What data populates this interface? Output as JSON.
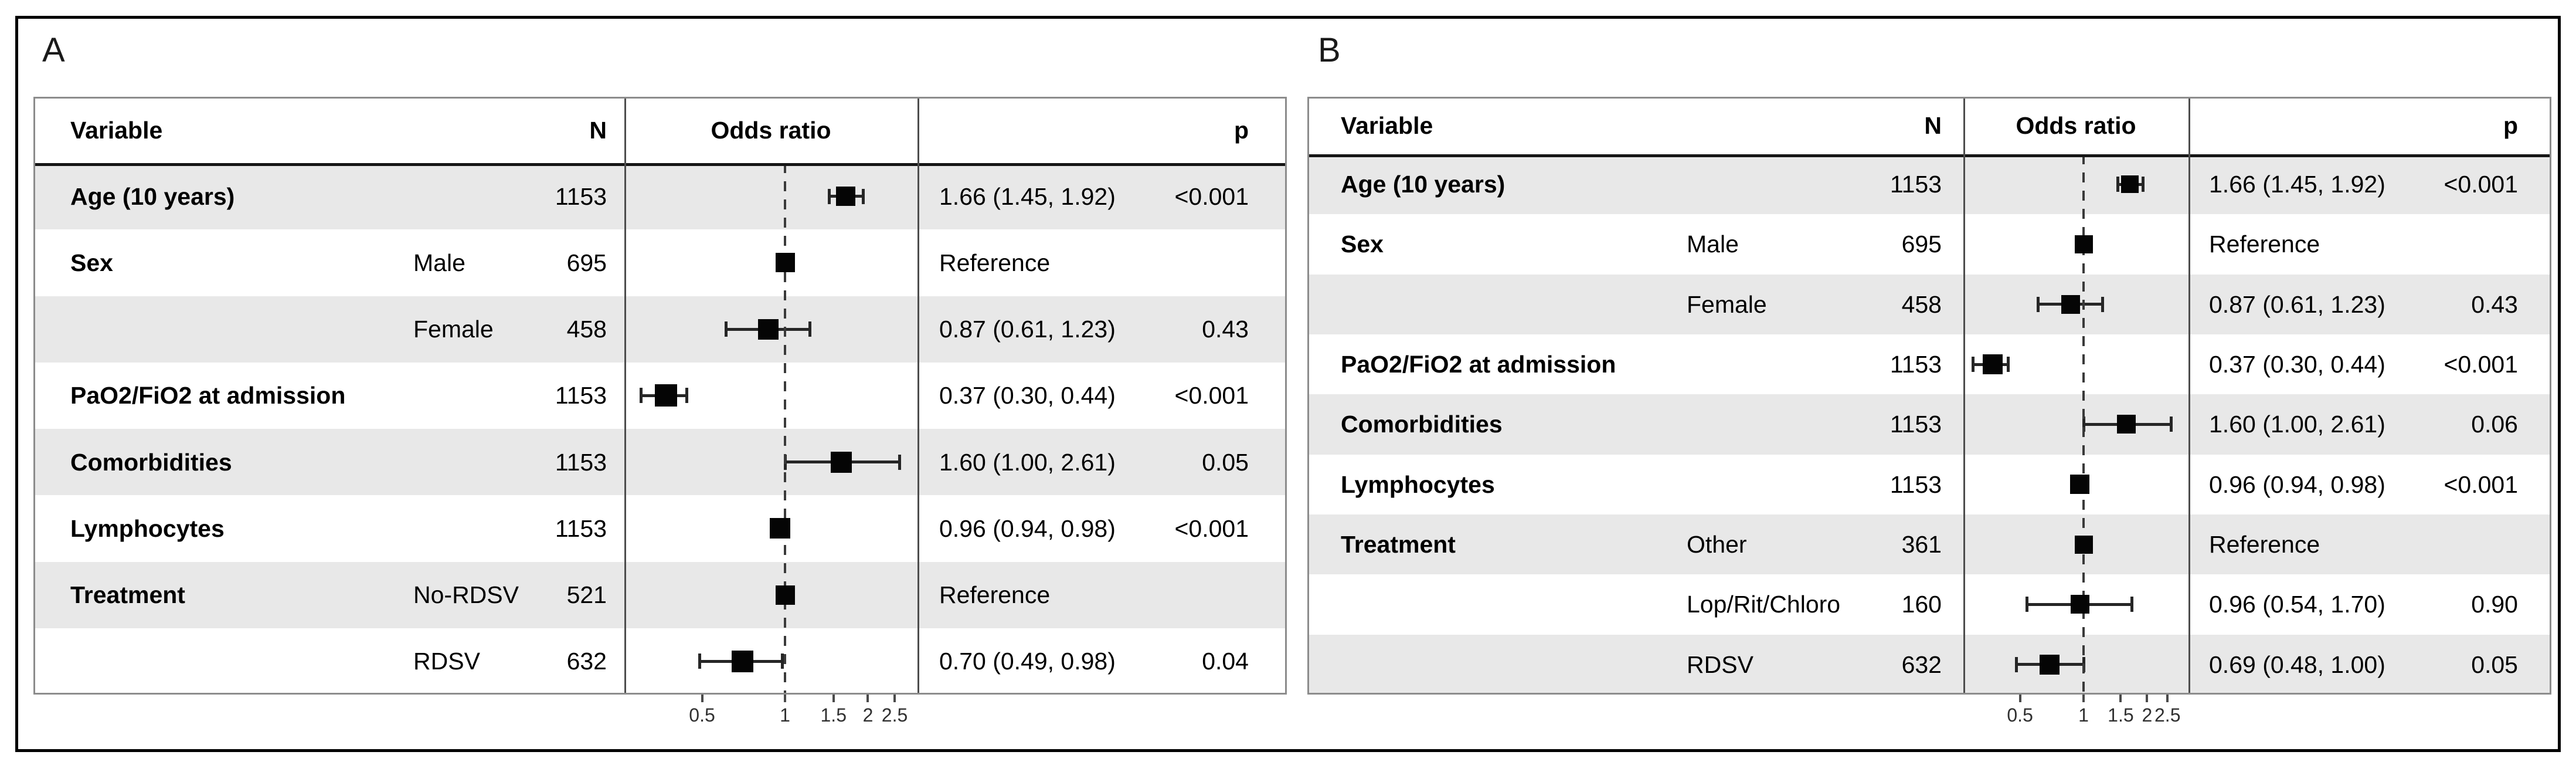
{
  "figure": {
    "colors": {
      "row_shade": "#e8e8e8",
      "marker": "#050505",
      "ci_line": "#262626",
      "table_frame": "#8c8c8c",
      "header_rule": "#161616",
      "outer_border": "#000000",
      "dashed_reference_line": "#3a3a3a"
    },
    "panels": [
      {
        "label": "A",
        "header": {
          "variable": "Variable",
          "n": "N",
          "odds_ratio": "Odds ratio",
          "p": "p"
        },
        "axis": {
          "scale": "log",
          "reference_line": 1,
          "ticks": [
            0.5,
            1,
            1.5,
            2,
            2.5
          ],
          "tick_labels": [
            "0.5",
            "1",
            "1.5",
            "2",
            "2.5"
          ]
        },
        "rows": [
          {
            "variable": "Age (10 years)",
            "level": "",
            "n": "1153",
            "or": 1.66,
            "ci_low": 1.45,
            "ci_high": 1.92,
            "estimate": "1.66 (1.45, 1.92)",
            "p": "<0.001",
            "shaded": true,
            "reference": false,
            "marker_size": 33
          },
          {
            "variable": "Sex",
            "level": "Male",
            "n": "695",
            "or": 1.0,
            "ci_low": null,
            "ci_high": null,
            "estimate": "Reference",
            "p": "",
            "shaded": false,
            "reference": true,
            "marker_size": 33
          },
          {
            "variable": "",
            "level": "Female",
            "n": "458",
            "or": 0.87,
            "ci_low": 0.61,
            "ci_high": 1.23,
            "estimate": "0.87 (0.61, 1.23)",
            "p": "0.43",
            "shaded": true,
            "reference": false,
            "marker_size": 35
          },
          {
            "variable": "PaO2/FiO2 at admission",
            "level": "",
            "n": "1153",
            "or": 0.37,
            "ci_low": 0.3,
            "ci_high": 0.44,
            "estimate": "0.37 (0.30, 0.44)",
            "p": "<0.001",
            "shaded": false,
            "reference": false,
            "marker_size": 38
          },
          {
            "variable": "Comorbidities",
            "level": "",
            "n": "1153",
            "or": 1.6,
            "ci_low": 1.0,
            "ci_high": 2.61,
            "estimate": "1.60 (1.00, 2.61)",
            "p": "0.05",
            "shaded": true,
            "reference": false,
            "marker_size": 36
          },
          {
            "variable": "Lymphocytes",
            "level": "",
            "n": "1153",
            "or": 0.96,
            "ci_low": 0.94,
            "ci_high": 0.98,
            "estimate": "0.96 (0.94, 0.98)",
            "p": "<0.001",
            "shaded": false,
            "reference": false,
            "marker_size": 35
          },
          {
            "variable": "Treatment",
            "level": "No-RDSV",
            "n": "521",
            "or": 1.0,
            "ci_low": null,
            "ci_high": null,
            "estimate": "Reference",
            "p": "",
            "shaded": true,
            "reference": true,
            "marker_size": 33
          },
          {
            "variable": "",
            "level": "RDSV",
            "n": "632",
            "or": 0.7,
            "ci_low": 0.49,
            "ci_high": 0.98,
            "estimate": "0.70 (0.49, 0.98)",
            "p": "0.04",
            "shaded": false,
            "reference": false,
            "marker_size": 37
          }
        ]
      },
      {
        "label": "B",
        "header": {
          "variable": "Variable",
          "n": "N",
          "odds_ratio": "Odds ratio",
          "p": "p"
        },
        "axis": {
          "scale": "log",
          "reference_line": 1,
          "ticks": [
            0.5,
            1,
            1.5,
            2,
            2.5
          ],
          "tick_labels": [
            "0.5",
            "1",
            "1.5",
            "2",
            "2.5"
          ]
        },
        "rows": [
          {
            "variable": "Age (10 years)",
            "level": "",
            "n": "1153",
            "or": 1.66,
            "ci_low": 1.45,
            "ci_high": 1.92,
            "estimate": "1.66 (1.45, 1.92)",
            "p": "<0.001",
            "shaded": true,
            "reference": false,
            "marker_size": 30
          },
          {
            "variable": "Sex",
            "level": "Male",
            "n": "695",
            "or": 1.0,
            "ci_low": null,
            "ci_high": null,
            "estimate": "Reference",
            "p": "",
            "shaded": false,
            "reference": true,
            "marker_size": 31
          },
          {
            "variable": "",
            "level": "Female",
            "n": "458",
            "or": 0.87,
            "ci_low": 0.61,
            "ci_high": 1.23,
            "estimate": "0.87 (0.61, 1.23)",
            "p": "0.43",
            "shaded": true,
            "reference": false,
            "marker_size": 32
          },
          {
            "variable": "PaO2/FiO2 at admission",
            "level": "",
            "n": "1153",
            "or": 0.37,
            "ci_low": 0.3,
            "ci_high": 0.44,
            "estimate": "0.37 (0.30, 0.44)",
            "p": "<0.001",
            "shaded": false,
            "reference": false,
            "marker_size": 34
          },
          {
            "variable": "Comorbidities",
            "level": "",
            "n": "1153",
            "or": 1.6,
            "ci_low": 1.0,
            "ci_high": 2.61,
            "estimate": "1.60 (1.00, 2.61)",
            "p": "0.06",
            "shaded": true,
            "reference": false,
            "marker_size": 32
          },
          {
            "variable": "Lymphocytes",
            "level": "",
            "n": "1153",
            "or": 0.96,
            "ci_low": 0.94,
            "ci_high": 0.98,
            "estimate": "0.96 (0.94, 0.98)",
            "p": "<0.001",
            "shaded": false,
            "reference": false,
            "marker_size": 33
          },
          {
            "variable": "Treatment",
            "level": "Other",
            "n": "361",
            "or": 1.0,
            "ci_low": null,
            "ci_high": null,
            "estimate": "Reference",
            "p": "",
            "shaded": true,
            "reference": true,
            "marker_size": 31
          },
          {
            "variable": "",
            "level": "Lop/Rit/Chloro",
            "n": "160",
            "or": 0.96,
            "ci_low": 0.54,
            "ci_high": 1.7,
            "estimate": "0.96 (0.54, 1.70)",
            "p": "0.90",
            "shaded": false,
            "reference": false,
            "marker_size": 32
          },
          {
            "variable": "",
            "level": "RDSV",
            "n": "632",
            "or": 0.69,
            "ci_low": 0.48,
            "ci_high": 1.0,
            "estimate": "0.69 (0.48, 1.00)",
            "p": "0.05",
            "shaded": true,
            "reference": false,
            "marker_size": 34
          }
        ]
      }
    ]
  },
  "chart_data": [
    {
      "type": "scatter",
      "subtype": "forest-plot",
      "title": "A",
      "xlabel": "Odds ratio",
      "x_scale": "log",
      "x_ticks": [
        0.5,
        1,
        1.5,
        2,
        2.5
      ],
      "reference_line": 1,
      "grid": false,
      "legend": "none",
      "categories": [
        "Age (10 years)",
        "Sex: Male",
        "Sex: Female",
        "PaO2/FiO2 at admission",
        "Comorbidities",
        "Lymphocytes",
        "Treatment: No-RDSV",
        "Treatment: RDSV"
      ],
      "series": [
        {
          "name": "Odds ratio (95% CI)",
          "points": [
            {
              "label": "Age (10 years)",
              "n": 1153,
              "or": 1.66,
              "ci": [
                1.45,
                1.92
              ],
              "p": "<0.001"
            },
            {
              "label": "Sex Male",
              "n": 695,
              "or": 1.0,
              "ci": null,
              "p": "Reference"
            },
            {
              "label": "Sex Female",
              "n": 458,
              "or": 0.87,
              "ci": [
                0.61,
                1.23
              ],
              "p": "0.43"
            },
            {
              "label": "PaO2/FiO2 at admission",
              "n": 1153,
              "or": 0.37,
              "ci": [
                0.3,
                0.44
              ],
              "p": "<0.001"
            },
            {
              "label": "Comorbidities",
              "n": 1153,
              "or": 1.6,
              "ci": [
                1.0,
                2.61
              ],
              "p": "0.05"
            },
            {
              "label": "Lymphocytes",
              "n": 1153,
              "or": 0.96,
              "ci": [
                0.94,
                0.98
              ],
              "p": "<0.001"
            },
            {
              "label": "Treatment No-RDSV",
              "n": 521,
              "or": 1.0,
              "ci": null,
              "p": "Reference"
            },
            {
              "label": "Treatment RDSV",
              "n": 632,
              "or": 0.7,
              "ci": [
                0.49,
                0.98
              ],
              "p": "0.04"
            }
          ]
        }
      ]
    },
    {
      "type": "scatter",
      "subtype": "forest-plot",
      "title": "B",
      "xlabel": "Odds ratio",
      "x_scale": "log",
      "x_ticks": [
        0.5,
        1,
        1.5,
        2,
        2.5
      ],
      "reference_line": 1,
      "grid": false,
      "legend": "none",
      "categories": [
        "Age (10 years)",
        "Sex: Male",
        "Sex: Female",
        "PaO2/FiO2 at admission",
        "Comorbidities",
        "Lymphocytes",
        "Treatment: Other",
        "Treatment: Lop/Rit/Chloro",
        "Treatment: RDSV"
      ],
      "series": [
        {
          "name": "Odds ratio (95% CI)",
          "points": [
            {
              "label": "Age (10 years)",
              "n": 1153,
              "or": 1.66,
              "ci": [
                1.45,
                1.92
              ],
              "p": "<0.001"
            },
            {
              "label": "Sex Male",
              "n": 695,
              "or": 1.0,
              "ci": null,
              "p": "Reference"
            },
            {
              "label": "Sex Female",
              "n": 458,
              "or": 0.87,
              "ci": [
                0.61,
                1.23
              ],
              "p": "0.43"
            },
            {
              "label": "PaO2/FiO2 at admission",
              "n": 1153,
              "or": 0.37,
              "ci": [
                0.3,
                0.44
              ],
              "p": "<0.001"
            },
            {
              "label": "Comorbidities",
              "n": 1153,
              "or": 1.6,
              "ci": [
                1.0,
                2.61
              ],
              "p": "0.06"
            },
            {
              "label": "Lymphocytes",
              "n": 1153,
              "or": 0.96,
              "ci": [
                0.94,
                0.98
              ],
              "p": "<0.001"
            },
            {
              "label": "Treatment Other",
              "n": 361,
              "or": 1.0,
              "ci": null,
              "p": "Reference"
            },
            {
              "label": "Treatment Lop/Rit/Chloro",
              "n": 160,
              "or": 0.96,
              "ci": [
                0.54,
                1.7
              ],
              "p": "0.90"
            },
            {
              "label": "Treatment RDSV",
              "n": 632,
              "or": 0.69,
              "ci": [
                0.48,
                1.0
              ],
              "p": "0.05"
            }
          ]
        }
      ]
    }
  ]
}
